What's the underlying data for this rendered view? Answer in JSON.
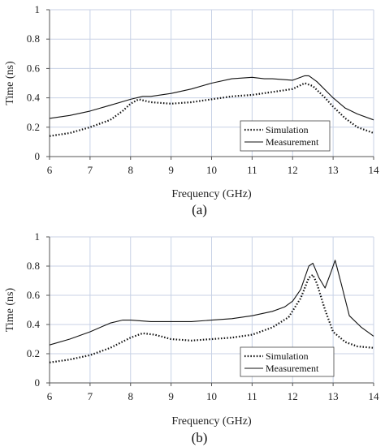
{
  "chart_data": [
    {
      "type": "line",
      "caption": "(a)",
      "xlabel": "Frequency (GHz)",
      "ylabel": "Time (ns)",
      "xlim": [
        6,
        14
      ],
      "ylim": [
        0,
        1
      ],
      "xticks": [
        "6",
        "7",
        "8",
        "9",
        "10",
        "11",
        "12",
        "13",
        "14"
      ],
      "yticks": [
        "0",
        "0.2",
        "0.4",
        "0.6",
        "0.8",
        "1"
      ],
      "grid": true,
      "legend_position": "bottom-right",
      "series": [
        {
          "name": "Simulation",
          "style": "dotted",
          "x": [
            6,
            6.5,
            7,
            7.5,
            7.8,
            8,
            8.2,
            8.5,
            9,
            9.5,
            10,
            10.5,
            11,
            11.5,
            12,
            12.3,
            12.5,
            12.8,
            13,
            13.3,
            13.6,
            14
          ],
          "y": [
            0.14,
            0.16,
            0.2,
            0.25,
            0.31,
            0.36,
            0.39,
            0.37,
            0.36,
            0.37,
            0.39,
            0.41,
            0.42,
            0.44,
            0.46,
            0.5,
            0.48,
            0.4,
            0.34,
            0.26,
            0.2,
            0.16
          ]
        },
        {
          "name": "Measurement",
          "style": "solid",
          "x": [
            6,
            6.5,
            7,
            7.5,
            8,
            8.3,
            8.5,
            9,
            9.5,
            10,
            10.5,
            11,
            11.3,
            11.5,
            12,
            12.3,
            12.4,
            12.6,
            13,
            13.3,
            13.6,
            14
          ],
          "y": [
            0.26,
            0.28,
            0.31,
            0.35,
            0.39,
            0.41,
            0.41,
            0.43,
            0.46,
            0.5,
            0.53,
            0.54,
            0.53,
            0.53,
            0.52,
            0.55,
            0.55,
            0.51,
            0.4,
            0.33,
            0.29,
            0.25
          ]
        }
      ]
    },
    {
      "type": "line",
      "caption": "(b)",
      "xlabel": "Frequency (GHz)",
      "ylabel": "Time (ns)",
      "xlim": [
        6,
        14
      ],
      "ylim": [
        0,
        1
      ],
      "xticks": [
        "6",
        "7",
        "8",
        "9",
        "10",
        "11",
        "12",
        "13",
        "14"
      ],
      "yticks": [
        "0",
        "0.2",
        "0.4",
        "0.6",
        "0.8",
        "1"
      ],
      "grid": true,
      "legend_position": "bottom-right",
      "series": [
        {
          "name": "Simulation",
          "style": "dotted",
          "x": [
            6,
            6.5,
            7,
            7.5,
            8,
            8.3,
            8.6,
            9,
            9.5,
            10,
            10.5,
            11,
            11.5,
            11.9,
            12.2,
            12.4,
            12.5,
            12.6,
            12.8,
            13,
            13.3,
            13.6,
            14
          ],
          "y": [
            0.14,
            0.16,
            0.19,
            0.24,
            0.31,
            0.34,
            0.33,
            0.3,
            0.29,
            0.3,
            0.31,
            0.33,
            0.38,
            0.45,
            0.58,
            0.72,
            0.74,
            0.68,
            0.5,
            0.35,
            0.28,
            0.25,
            0.24
          ]
        },
        {
          "name": "Measurement",
          "style": "solid",
          "x": [
            6,
            6.5,
            7,
            7.5,
            7.8,
            8,
            8.5,
            9,
            9.5,
            10,
            10.5,
            11,
            11.5,
            11.8,
            12,
            12.2,
            12.4,
            12.5,
            12.65,
            12.8,
            12.95,
            13.05,
            13.2,
            13.4,
            13.7,
            14
          ],
          "y": [
            0.26,
            0.3,
            0.35,
            0.41,
            0.43,
            0.43,
            0.42,
            0.42,
            0.42,
            0.43,
            0.44,
            0.46,
            0.49,
            0.52,
            0.56,
            0.64,
            0.8,
            0.82,
            0.72,
            0.65,
            0.76,
            0.84,
            0.68,
            0.46,
            0.38,
            0.32
          ]
        }
      ]
    }
  ]
}
